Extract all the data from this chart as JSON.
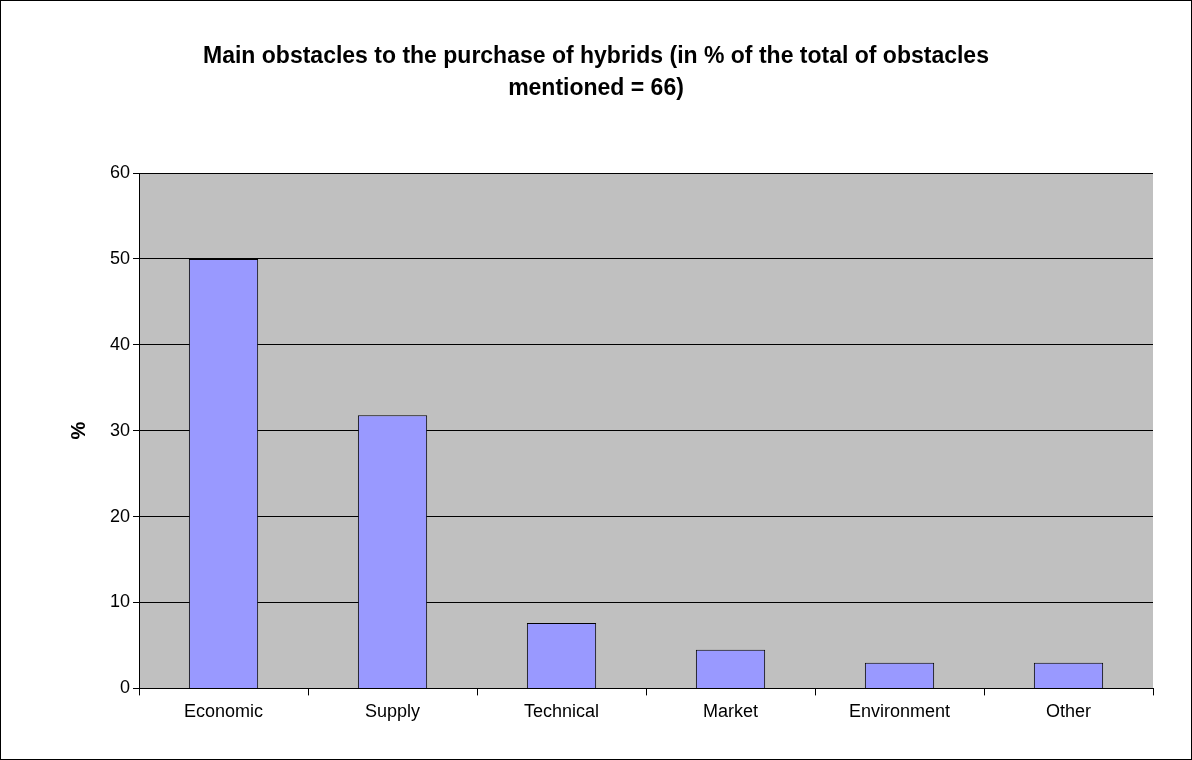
{
  "chart_data": {
    "type": "bar",
    "title": "Main obstacles to the purchase of hybrids (in % of the total of obstacles mentioned = 66)",
    "ylabel": "%",
    "categories": [
      "Economic",
      "Supply",
      "Technical",
      "Market",
      "Environment",
      "Other"
    ],
    "values": [
      50,
      31.8,
      7.6,
      4.5,
      3.0,
      3.0
    ],
    "color": "#9999ff",
    "ylim": [
      0,
      60
    ],
    "yticks": [
      0,
      10,
      20,
      30,
      40,
      50,
      60
    ],
    "grid": "y",
    "legend": false
  }
}
